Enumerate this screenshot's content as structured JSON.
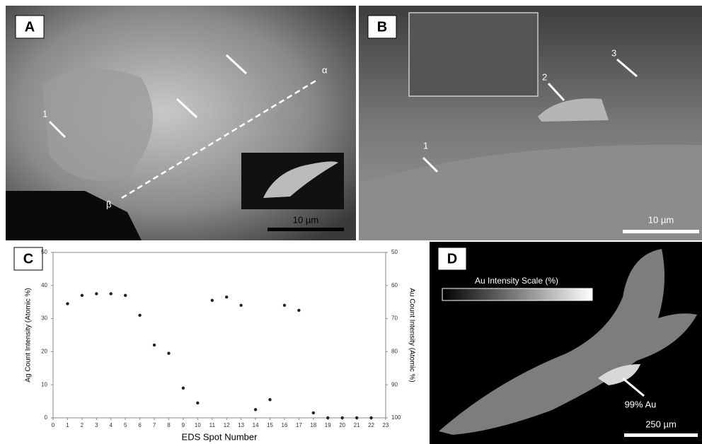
{
  "panel_a": {
    "label": "A",
    "arrow_label": "1",
    "line_start": "α",
    "line_end": "β",
    "scale_bar": "10 µm"
  },
  "panel_b": {
    "label": "B",
    "arrow_labels": [
      "1",
      "2",
      "3"
    ],
    "scale_bar": "10 µm"
  },
  "panel_d": {
    "label": "D",
    "legend_title": "Au Intensity Scale (%)",
    "annotation": "99% Au",
    "scale_bar": "250 µm"
  },
  "chart_data": {
    "type": "scatter",
    "panel_label": "C",
    "x_label": "EDS Spot Number",
    "y_label": "Ag Count Intensity (Atomic %)",
    "y2_label": "Au Count Intensity (Atomic %)",
    "x": [
      1,
      2,
      3,
      4,
      5,
      6,
      7,
      8,
      9,
      10,
      11,
      12,
      13,
      14,
      15,
      16,
      17,
      18,
      19,
      20,
      21,
      22
    ],
    "values": [
      34.5,
      37,
      37.5,
      37.5,
      37,
      31,
      22,
      19.5,
      9,
      4.5,
      35.5,
      36.5,
      34,
      2.5,
      5.5,
      34,
      32.5,
      1.5,
      0,
      0,
      0,
      0
    ],
    "color": "#222222",
    "xlim": [
      0,
      23
    ],
    "xticks": [
      0,
      1,
      2,
      3,
      4,
      5,
      6,
      7,
      8,
      9,
      10,
      11,
      12,
      13,
      14,
      15,
      16,
      17,
      18,
      19,
      20,
      21,
      22,
      23
    ],
    "ylim": [
      0,
      50
    ],
    "yticks": [
      0,
      10,
      20,
      30,
      40,
      50
    ],
    "y2lim": [
      100,
      50
    ],
    "y2ticks": [
      50,
      60,
      70,
      80,
      90,
      100
    ]
  }
}
